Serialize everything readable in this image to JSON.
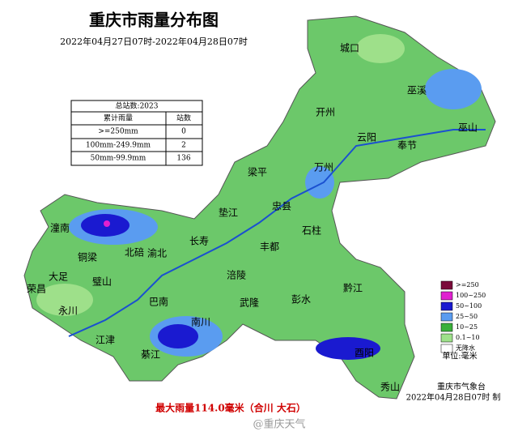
{
  "title": "重庆市雨量分布图",
  "subtitle": "2022年04月27日07时-2022年04月28日07时",
  "stats_table": {
    "title": "总站数:2023",
    "header": [
      "累计雨量",
      "站数"
    ],
    "rows": [
      [
        ">=250mm",
        "0"
      ],
      [
        "100mm-249.9mm",
        "2"
      ],
      [
        "50mm-99.9mm",
        "136"
      ]
    ]
  },
  "legend": {
    "items": [
      {
        "label": ">=250",
        "color": "#7a0a3a"
      },
      {
        "label": "100~250",
        "color": "#e020d0"
      },
      {
        "label": "50~100",
        "color": "#1a1ad0"
      },
      {
        "label": "25~50",
        "color": "#5a9cf0"
      },
      {
        "label": "10~25",
        "color": "#3ab03a"
      },
      {
        "label": "0.1~10",
        "color": "#9ee08a"
      },
      {
        "label": "无降水",
        "color": "#ffffff"
      }
    ],
    "unit": "单位:毫米"
  },
  "places": [
    "城口",
    "巫溪",
    "开州",
    "云阳",
    "巫山",
    "奉节",
    "万州",
    "梁平",
    "忠县",
    "垫江",
    "石柱",
    "长寿",
    "丰都",
    "潼南",
    "铜梁",
    "北碚",
    "渝北",
    "大足",
    "璧山",
    "荣昌",
    "永川",
    "巴南",
    "涪陵",
    "武隆",
    "彭水",
    "黔江",
    "江津",
    "綦江",
    "南川",
    "酉阳",
    "秀山"
  ],
  "footer": {
    "org": "重庆市气象台",
    "time": "2022年04月28日07时 制",
    "max_rain": "最大雨量114.0毫米（合川 大石）",
    "watermark": "@重庆天气"
  }
}
